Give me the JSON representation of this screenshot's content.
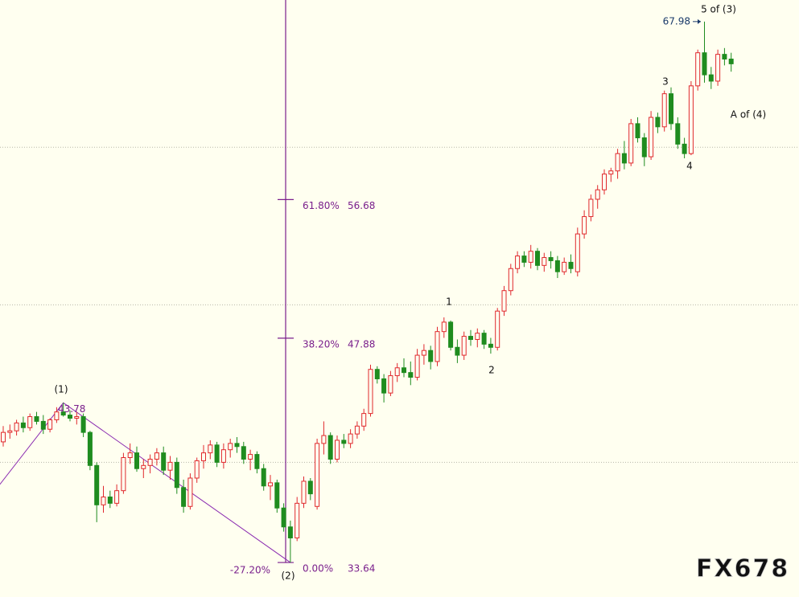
{
  "chart_data": {
    "type": "candlestick",
    "ylim": [
      31.45,
      69.35
    ],
    "grid_lines": [
      40,
      50,
      60
    ],
    "up_color": "#e0282d",
    "down_color": "#1f8c1f",
    "ohlc": [
      [
        41.3,
        42.3,
        41.0,
        41.9
      ],
      [
        41.9,
        42.4,
        41.5,
        42.0
      ],
      [
        42.0,
        42.7,
        41.7,
        42.5
      ],
      [
        42.5,
        42.9,
        41.9,
        42.2
      ],
      [
        42.2,
        43.1,
        42.0,
        42.9
      ],
      [
        42.9,
        43.2,
        42.4,
        42.6
      ],
      [
        42.6,
        43.0,
        41.8,
        42.1
      ],
      [
        42.1,
        42.8,
        41.9,
        42.7
      ],
      [
        42.7,
        43.5,
        42.5,
        43.2
      ],
      [
        43.2,
        43.78,
        42.9,
        43.0
      ],
      [
        43.0,
        43.3,
        42.6,
        42.8
      ],
      [
        42.8,
        43.2,
        42.4,
        42.9
      ],
      [
        42.9,
        43.1,
        41.6,
        41.9
      ],
      [
        41.9,
        42.0,
        39.5,
        39.8
      ],
      [
        39.8,
        40.0,
        36.2,
        37.3
      ],
      [
        37.3,
        38.5,
        36.8,
        37.8
      ],
      [
        37.8,
        38.2,
        37.1,
        37.4
      ],
      [
        37.4,
        38.6,
        37.2,
        38.2
      ],
      [
        38.2,
        40.6,
        38.0,
        40.3
      ],
      [
        40.3,
        41.2,
        39.9,
        40.6
      ],
      [
        40.6,
        41.0,
        39.4,
        39.6
      ],
      [
        39.6,
        40.2,
        39.0,
        39.8
      ],
      [
        39.8,
        40.5,
        39.3,
        40.2
      ],
      [
        40.2,
        40.9,
        39.8,
        40.6
      ],
      [
        40.6,
        41.0,
        39.2,
        39.5
      ],
      [
        39.5,
        40.4,
        38.9,
        40.0
      ],
      [
        40.0,
        40.3,
        38.0,
        38.4
      ],
      [
        38.4,
        38.9,
        36.8,
        37.2
      ],
      [
        37.2,
        39.3,
        37.0,
        39.0
      ],
      [
        39.0,
        40.3,
        38.7,
        40.1
      ],
      [
        40.1,
        41.1,
        39.6,
        40.6
      ],
      [
        40.6,
        41.4,
        40.2,
        41.1
      ],
      [
        41.1,
        41.3,
        39.7,
        40.0
      ],
      [
        40.0,
        41.2,
        39.6,
        40.8
      ],
      [
        40.8,
        41.5,
        40.3,
        41.2
      ],
      [
        41.2,
        41.6,
        40.6,
        41.0
      ],
      [
        41.0,
        41.3,
        39.9,
        40.2
      ],
      [
        40.2,
        40.8,
        39.5,
        40.5
      ],
      [
        40.5,
        40.7,
        39.3,
        39.6
      ],
      [
        39.6,
        39.9,
        38.2,
        38.5
      ],
      [
        38.5,
        39.2,
        37.6,
        38.7
      ],
      [
        38.7,
        38.9,
        36.8,
        37.1
      ],
      [
        37.1,
        37.4,
        35.6,
        35.9
      ],
      [
        35.9,
        36.3,
        33.64,
        35.2
      ],
      [
        35.2,
        37.8,
        35.0,
        37.4
      ],
      [
        37.4,
        39.1,
        37.1,
        38.8
      ],
      [
        38.8,
        39.0,
        37.6,
        38.0
      ],
      [
        37.2,
        41.5,
        37.0,
        41.2
      ],
      [
        41.2,
        42.6,
        40.5,
        41.7
      ],
      [
        41.7,
        41.9,
        39.9,
        40.2
      ],
      [
        40.2,
        41.7,
        40.0,
        41.4
      ],
      [
        41.4,
        41.8,
        40.9,
        41.2
      ],
      [
        41.2,
        42.1,
        40.9,
        41.8
      ],
      [
        41.8,
        42.6,
        41.5,
        42.3
      ],
      [
        42.3,
        43.4,
        42.0,
        43.1
      ],
      [
        43.1,
        46.2,
        42.9,
        45.9
      ],
      [
        45.9,
        46.1,
        45.0,
        45.3
      ],
      [
        45.3,
        45.6,
        43.8,
        44.4
      ],
      [
        44.4,
        45.8,
        44.2,
        45.5
      ],
      [
        45.5,
        46.3,
        45.1,
        46.0
      ],
      [
        46.0,
        46.6,
        45.4,
        45.7
      ],
      [
        45.7,
        46.4,
        44.9,
        45.4
      ],
      [
        45.4,
        47.2,
        45.2,
        46.8
      ],
      [
        46.8,
        47.5,
        46.2,
        47.1
      ],
      [
        47.1,
        47.4,
        45.9,
        46.4
      ],
      [
        46.4,
        48.6,
        46.1,
        48.3
      ],
      [
        48.3,
        49.2,
        47.9,
        48.9
      ],
      [
        48.9,
        49.0,
        47.1,
        47.3
      ],
      [
        47.3,
        47.8,
        46.3,
        46.8
      ],
      [
        46.8,
        48.3,
        46.5,
        48.0
      ],
      [
        48.0,
        48.4,
        47.4,
        47.8
      ],
      [
        47.8,
        48.5,
        47.3,
        48.2
      ],
      [
        48.2,
        48.4,
        47.2,
        47.5
      ],
      [
        47.5,
        47.9,
        46.9,
        47.3
      ],
      [
        47.3,
        49.8,
        47.1,
        49.6
      ],
      [
        49.6,
        51.2,
        49.3,
        50.9
      ],
      [
        50.9,
        52.6,
        50.6,
        52.3
      ],
      [
        52.3,
        53.4,
        52.0,
        53.1
      ],
      [
        53.1,
        53.4,
        52.4,
        52.7
      ],
      [
        52.7,
        53.8,
        52.3,
        53.4
      ],
      [
        53.4,
        53.6,
        52.2,
        52.5
      ],
      [
        52.5,
        53.3,
        52.1,
        53.0
      ],
      [
        53.0,
        53.4,
        52.3,
        52.8
      ],
      [
        52.8,
        53.1,
        51.7,
        52.1
      ],
      [
        52.1,
        53.0,
        51.9,
        52.7
      ],
      [
        52.7,
        53.2,
        52.0,
        52.3
      ],
      [
        52.1,
        54.9,
        51.8,
        54.5
      ],
      [
        54.5,
        56.0,
        54.2,
        55.6
      ],
      [
        55.6,
        57.0,
        55.3,
        56.7
      ],
      [
        56.7,
        57.6,
        56.1,
        57.3
      ],
      [
        57.3,
        58.6,
        57.0,
        58.3
      ],
      [
        58.3,
        58.7,
        57.8,
        58.5
      ],
      [
        58.5,
        59.9,
        58.0,
        59.6
      ],
      [
        59.6,
        60.4,
        58.6,
        59.0
      ],
      [
        59.0,
        61.8,
        58.8,
        61.5
      ],
      [
        61.5,
        61.9,
        60.3,
        60.6
      ],
      [
        60.6,
        60.9,
        58.8,
        59.4
      ],
      [
        59.4,
        62.3,
        59.2,
        61.9
      ],
      [
        61.9,
        62.2,
        60.9,
        61.3
      ],
      [
        61.3,
        63.6,
        61.0,
        63.4
      ],
      [
        63.4,
        63.8,
        61.1,
        61.5
      ],
      [
        61.5,
        61.9,
        59.9,
        60.2
      ],
      [
        60.2,
        60.6,
        59.3,
        59.6
      ],
      [
        59.6,
        64.2,
        59.5,
        63.9
      ],
      [
        63.9,
        66.2,
        63.6,
        66.0
      ],
      [
        66.0,
        67.98,
        64.1,
        64.6
      ],
      [
        64.6,
        65.1,
        63.7,
        64.2
      ],
      [
        64.2,
        66.2,
        63.9,
        65.9
      ],
      [
        65.9,
        66.3,
        65.2,
        65.6
      ],
      [
        65.6,
        66.0,
        64.8,
        65.3
      ]
    ],
    "wave_line": {
      "x": [
        -0.5,
        9,
        43
      ],
      "y": [
        38.6,
        43.78,
        33.64
      ],
      "color": "#8a2ab0"
    },
    "fibonacci": {
      "color": "#7a1f8c",
      "levels": [
        {
          "label": "61.80%",
          "price": 56.68
        },
        {
          "label": "38.20%",
          "price": 47.88
        },
        {
          "label": "0.00%",
          "price": 33.64
        }
      ],
      "extension_label": "-27.20%"
    },
    "wave_labels": [
      "(1)",
      "(2)",
      "1",
      "2",
      "3",
      "4",
      "5 of (3)",
      "A of (4)"
    ],
    "price_labels": [
      43.78,
      67.98
    ],
    "watermark": "FX678"
  }
}
